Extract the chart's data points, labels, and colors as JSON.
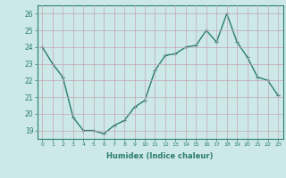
{
  "x": [
    0,
    1,
    2,
    3,
    4,
    5,
    6,
    7,
    8,
    9,
    10,
    11,
    12,
    13,
    14,
    15,
    16,
    17,
    18,
    19,
    20,
    21,
    22,
    23
  ],
  "y": [
    24.0,
    23.0,
    22.2,
    19.8,
    19.0,
    19.0,
    18.8,
    19.3,
    19.6,
    20.4,
    20.8,
    22.6,
    23.5,
    23.6,
    24.0,
    24.1,
    25.0,
    24.3,
    26.0,
    24.3,
    23.4,
    22.2,
    22.0,
    21.1
  ],
  "line_color": "#2a7d6e",
  "bg_color": "#cce8e8",
  "grid_color": "#aacccc",
  "xlabel": "Humidex (Indice chaleur)",
  "ylim": [
    18.5,
    26.5
  ],
  "xlim": [
    -0.5,
    23.5
  ],
  "yticks": [
    19,
    20,
    21,
    22,
    23,
    24,
    25,
    26
  ],
  "xticks": [
    0,
    1,
    2,
    3,
    4,
    5,
    6,
    7,
    8,
    9,
    10,
    11,
    12,
    13,
    14,
    15,
    16,
    17,
    18,
    19,
    20,
    21,
    22,
    23
  ],
  "markersize": 3.5,
  "linewidth": 1.0
}
